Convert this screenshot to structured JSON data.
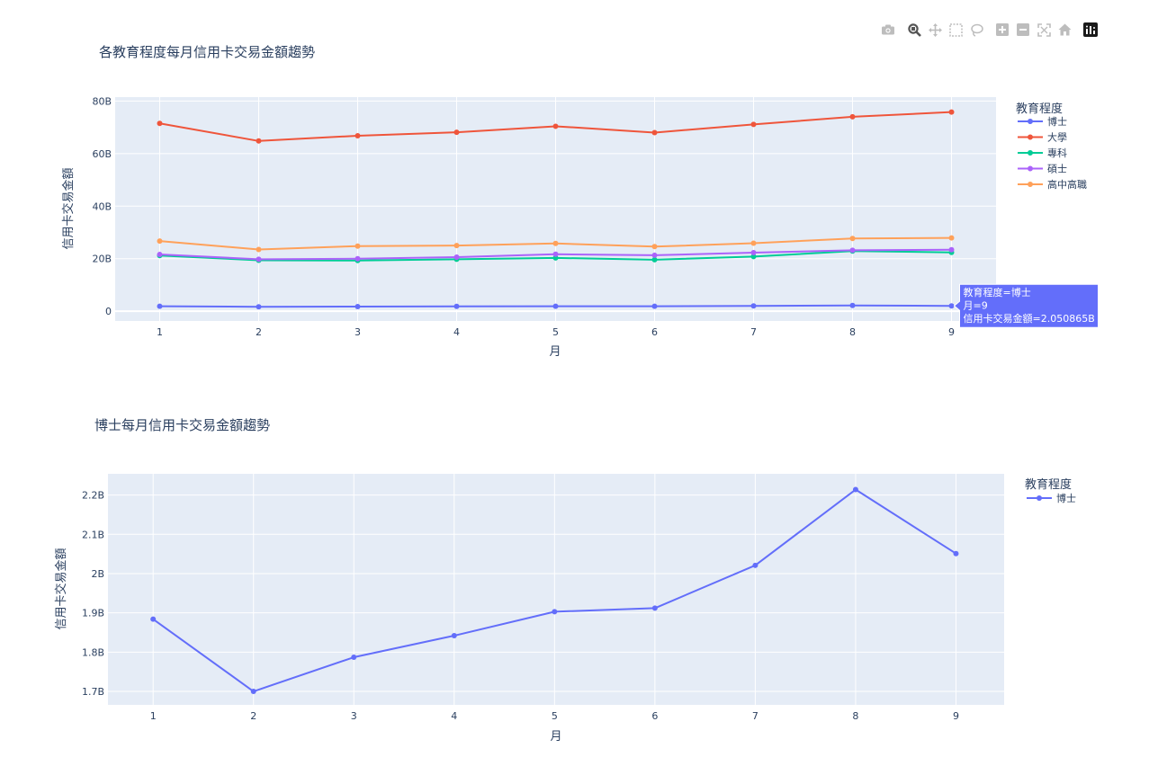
{
  "toolbar": {
    "icons": [
      "camera-icon",
      "zoom-icon",
      "pan-icon",
      "box-select-icon",
      "lasso-select-icon",
      "zoom-in-icon",
      "zoom-out-icon",
      "autoscale-icon",
      "reset-axes-icon",
      "plotly-logo-icon"
    ],
    "icon_color": "#bdbdbd"
  },
  "chart_data": [
    {
      "type": "line",
      "title": "各教育程度每月信用卡交易金額趨勢",
      "xlabel": "月",
      "ylabel": "信用卡交易金額",
      "x": [
        1,
        2,
        3,
        4,
        5,
        6,
        7,
        8,
        9
      ],
      "xticks": [
        "1",
        "2",
        "3",
        "4",
        "5",
        "6",
        "7",
        "8",
        "9"
      ],
      "xlim": [
        0.55,
        9.45
      ],
      "ylim": [
        -3.7,
        81.5
      ],
      "yticks": [
        0,
        20,
        40,
        60,
        80
      ],
      "ytick_labels": [
        "0",
        "20B",
        "40B",
        "60B",
        "80B"
      ],
      "grid": true,
      "legend": {
        "title": "教育程度",
        "position": "right"
      },
      "series": [
        {
          "name": "博士",
          "color": "#636efa",
          "values": [
            1.884,
            1.7,
            1.787,
            1.842,
            1.903,
            1.912,
            2.021,
            2.214,
            2.051
          ]
        },
        {
          "name": "大學",
          "color": "#ef553b",
          "values": [
            71.5,
            64.8,
            66.8,
            68.1,
            70.4,
            68.0,
            71.1,
            74.0,
            75.8
          ]
        },
        {
          "name": "專科",
          "color": "#00cc96",
          "values": [
            21.2,
            19.4,
            19.3,
            19.8,
            20.3,
            19.6,
            20.8,
            22.9,
            22.4
          ]
        },
        {
          "name": "碩士",
          "color": "#ab63fa",
          "values": [
            21.6,
            19.8,
            20.0,
            20.6,
            21.7,
            21.3,
            22.3,
            23.2,
            23.4
          ]
        },
        {
          "name": "高中高職",
          "color": "#ffa15a",
          "values": [
            26.7,
            23.5,
            24.8,
            25.0,
            25.8,
            24.6,
            25.9,
            27.7,
            27.9
          ]
        }
      ],
      "hover": {
        "series": "博士",
        "x": 9,
        "lines": [
          "教育程度=博士",
          "月=9",
          "信用卡交易金額=2.050865B"
        ]
      }
    },
    {
      "type": "line",
      "title": "博士每月信用卡交易金額趨勢",
      "xlabel": "月",
      "ylabel": "信用卡交易金額",
      "x": [
        1,
        2,
        3,
        4,
        5,
        6,
        7,
        8,
        9
      ],
      "xticks": [
        "1",
        "2",
        "3",
        "4",
        "5",
        "6",
        "7",
        "8",
        "9"
      ],
      "xlim": [
        0.55,
        9.48
      ],
      "ylim": [
        1.6657,
        2.2541
      ],
      "yticks": [
        1.7,
        1.8,
        1.9,
        2.0,
        2.1,
        2.2
      ],
      "ytick_labels": [
        "1.7B",
        "1.8B",
        "1.9B",
        "2B",
        "2.1B",
        "2.2B"
      ],
      "grid": true,
      "legend": {
        "title": "教育程度",
        "position": "right"
      },
      "series": [
        {
          "name": "博士",
          "color": "#636efa",
          "values": [
            1.884,
            1.7,
            1.787,
            1.842,
            1.903,
            1.912,
            2.021,
            2.214,
            2.051
          ]
        }
      ]
    }
  ],
  "style": {
    "plot_bg": "#e5ecf6",
    "grid_color": "#ffffff",
    "text_color": "#2a3f5f"
  }
}
